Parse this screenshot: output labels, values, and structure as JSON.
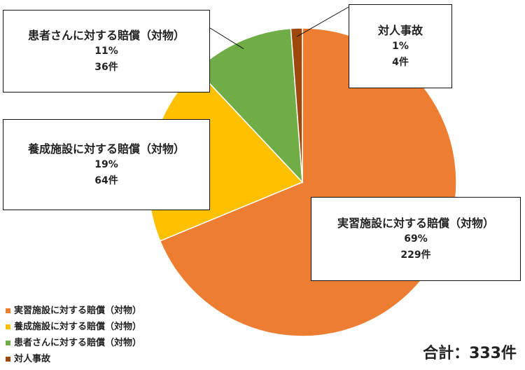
{
  "chart_data": {
    "type": "pie",
    "categories": [
      "実習施設に対する賠償（対物）",
      "養成施設に対する賠償（対物）",
      "患者さんに対する賠償（対物）",
      "対人事故"
    ],
    "series": [
      {
        "percent_labels": [
          "69%",
          "19%",
          "11%",
          "1%"
        ],
        "count_labels": [
          "229件",
          "64件",
          "36件",
          "4件"
        ],
        "values": [
          229,
          64,
          36,
          4
        ],
        "colors": [
          "#ed7d31",
          "#ffc000",
          "#70ad47",
          "#9e480e"
        ]
      }
    ],
    "legend_position": "bottom-left",
    "total_label": "合計：333件"
  }
}
